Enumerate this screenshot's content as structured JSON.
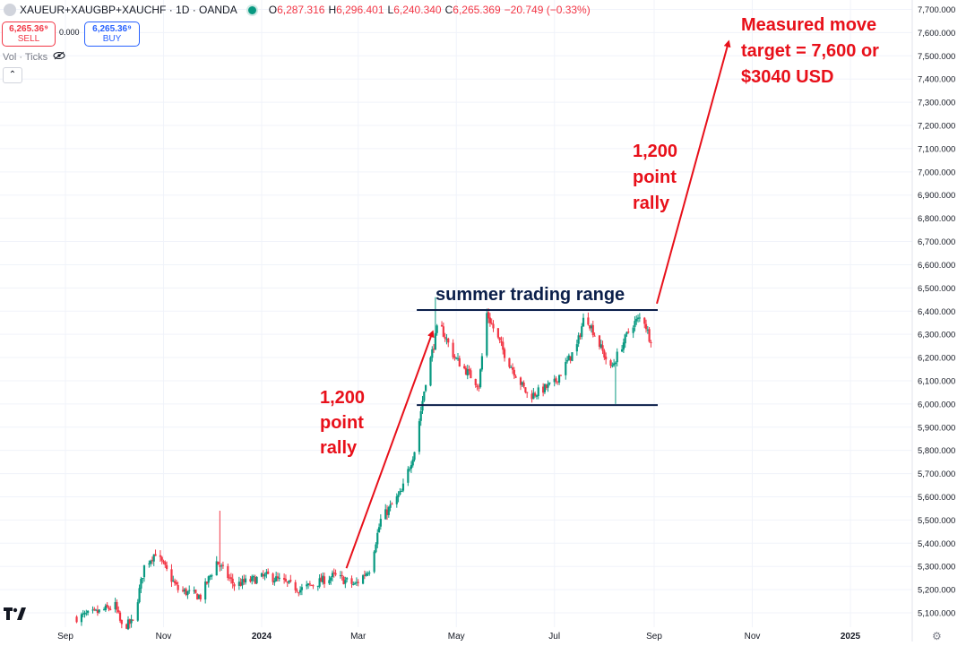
{
  "header": {
    "symbol": "XAUEUR+XAUGBP+XAUCHF · 1D · OANDA",
    "open_label": "O",
    "open": "6,287.316",
    "high_label": "H",
    "high": "6,296.401",
    "low_label": "L",
    "low": "6,240.340",
    "close_label": "C",
    "close": "6,265.369",
    "change": "−20.749 (−0.33%)"
  },
  "trade": {
    "sell_price": "6,265.36⁹",
    "sell_label": "SELL",
    "spread": "0.000",
    "buy_price": "6,265.36⁹",
    "buy_label": "BUY"
  },
  "volume_label": "Vol · Ticks",
  "icons": [
    "symbol-icon",
    "status-dot-icon",
    "eye-off-icon",
    "chevron-up-icon",
    "tradingview-logo-icon",
    "settings-icon"
  ],
  "colors": {
    "up": "#089981",
    "down": "#f23645",
    "annotation": "#e8101a",
    "range_line": "#0b1f4a"
  },
  "chart_data": {
    "type": "candlestick",
    "title": "",
    "xlabel": "",
    "ylabel": "",
    "ylim": [
      5040,
      7740
    ],
    "y_ticks": [
      "5,100.000",
      "5,200.000",
      "5,300.000",
      "5,400.000",
      "5,500.000",
      "5,600.000",
      "5,700.000",
      "5,800.000",
      "5,900.000",
      "6,000.000",
      "6,100.000",
      "6,200.000",
      "6,300.000",
      "6,400.000",
      "6,500.000",
      "6,600.000",
      "6,700.000",
      "6,800.000",
      "6,900.000",
      "7,000.000",
      "7,100.000",
      "7,200.000",
      "7,300.000",
      "7,400.000",
      "7,500.000",
      "7,600.000",
      "7,700.000"
    ],
    "x_ticks": [
      "Sep",
      "Nov",
      "2024",
      "Mar",
      "May",
      "Jul",
      "Sep",
      "Nov",
      "2025"
    ],
    "price_path": [
      [
        "2023-09-08",
        5080
      ],
      [
        "2023-09-20",
        5100
      ],
      [
        "2023-10-02",
        5130
      ],
      [
        "2023-10-06",
        5040
      ],
      [
        "2023-10-13",
        5060
      ],
      [
        "2023-10-20",
        5300
      ],
      [
        "2023-10-27",
        5360
      ],
      [
        "2023-11-10",
        5200
      ],
      [
        "2023-11-24",
        5170
      ],
      [
        "2023-12-04",
        5320
      ],
      [
        "2023-12-15",
        5220
      ],
      [
        "2024-01-05",
        5260
      ],
      [
        "2024-01-25",
        5200
      ],
      [
        "2024-02-15",
        5260
      ],
      [
        "2024-02-28",
        5220
      ],
      [
        "2024-03-08",
        5290
      ],
      [
        "2024-03-15",
        5500
      ],
      [
        "2024-03-28",
        5620
      ],
      [
        "2024-04-05",
        5800
      ],
      [
        "2024-04-12",
        6100
      ],
      [
        "2024-04-20",
        6350
      ],
      [
        "2024-04-30",
        6200
      ],
      [
        "2024-05-15",
        6080
      ],
      [
        "2024-05-20",
        6390
      ],
      [
        "2024-06-01",
        6200
      ],
      [
        "2024-06-15",
        6030
      ],
      [
        "2024-07-01",
        6090
      ],
      [
        "2024-07-15",
        6250
      ],
      [
        "2024-07-20",
        6390
      ],
      [
        "2024-08-05",
        6150
      ],
      [
        "2024-08-18",
        6340
      ],
      [
        "2024-08-25",
        6380
      ],
      [
        "2024-08-30",
        6265
      ]
    ],
    "spikes": [
      [
        "2023-12-06",
        5540
      ],
      [
        "2024-04-18",
        6460
      ],
      [
        "2024-08-08",
        6000
      ]
    ],
    "range_lines": [
      {
        "y": 6405,
        "x_start": "2024-04-12",
        "x_end": "2024-09-01"
      },
      {
        "y": 5995,
        "x_start": "2024-04-12",
        "x_end": "2024-09-01"
      }
    ],
    "arrows": [
      {
        "from": [
          "2024-02-21",
          5300
        ],
        "to": [
          "2024-04-18",
          6350
        ]
      },
      {
        "from": [
          "2024-09-01",
          6440
        ],
        "to": [
          "2024-10-19",
          7600
        ]
      }
    ],
    "annotations": {
      "range_label": "summer trading range",
      "rally_left": [
        "1,200",
        "point",
        "rally"
      ],
      "rally_right": [
        "1,200",
        "point",
        "rally"
      ],
      "target": [
        "Measured move",
        "target = 7,600 or",
        "$3040 USD"
      ]
    }
  }
}
